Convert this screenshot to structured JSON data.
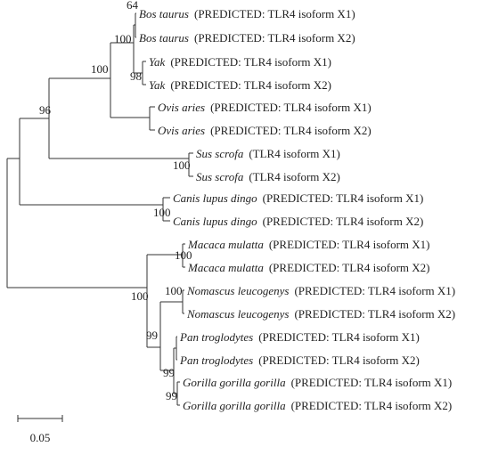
{
  "leaves": [
    {
      "species": "Bos taurus",
      "description": "(PREDICTED: TLR4 isoform X1)"
    },
    {
      "species": "Bos taurus",
      "description": "(PREDICTED: TLR4 isoform X2)"
    },
    {
      "species": "Yak",
      "description": "(PREDICTED: TLR4 isoform X1)"
    },
    {
      "species": "Yak",
      "description": "(PREDICTED: TLR4 isoform X2)"
    },
    {
      "species": "Ovis aries",
      "description": "(PREDICTED: TLR4 isoform X1)"
    },
    {
      "species": "Ovis aries",
      "description": "(PREDICTED: TLR4 isoform X2)"
    },
    {
      "species": "Sus scrofa",
      "description": "(TLR4 isoform X1)"
    },
    {
      "species": "Sus scrofa",
      "description": "(TLR4 isoform X2)"
    },
    {
      "species": "Canis lupus dingo",
      "description": "(PREDICTED: TLR4 isoform X1)"
    },
    {
      "species": "Canis lupus dingo",
      "description": "(PREDICTED: TLR4 isoform X2)"
    },
    {
      "species": "Macaca mulatta",
      "description": "(PREDICTED: TLR4 isoform X1)"
    },
    {
      "species": "Macaca mulatta",
      "description": "(PREDICTED: TLR4 isoform X2)"
    },
    {
      "species": "Nomascus leucogenys",
      "description": "(PREDICTED: TLR4 isoform X1)"
    },
    {
      "species": "Nomascus leucogenys",
      "description": "(PREDICTED: TLR4 isoform X2)"
    },
    {
      "species": "Pan troglodytes",
      "description": "(PREDICTED: TLR4 isoform X1)"
    },
    {
      "species": "Pan troglodytes",
      "description": "(PREDICTED: TLR4 isoform X2)"
    },
    {
      "species": "Gorilla gorilla gorilla",
      "description": "(PREDICTED: TLR4 isoform X1)"
    },
    {
      "species": "Gorilla gorilla gorilla",
      "description": "(PREDICTED: TLR4 isoform X2)"
    }
  ],
  "bootstrap": [
    64,
    100,
    98,
    100,
    96,
    100,
    100,
    100,
    100,
    100,
    99,
    99,
    99
  ],
  "scale_bar": {
    "label": "0.05"
  }
}
